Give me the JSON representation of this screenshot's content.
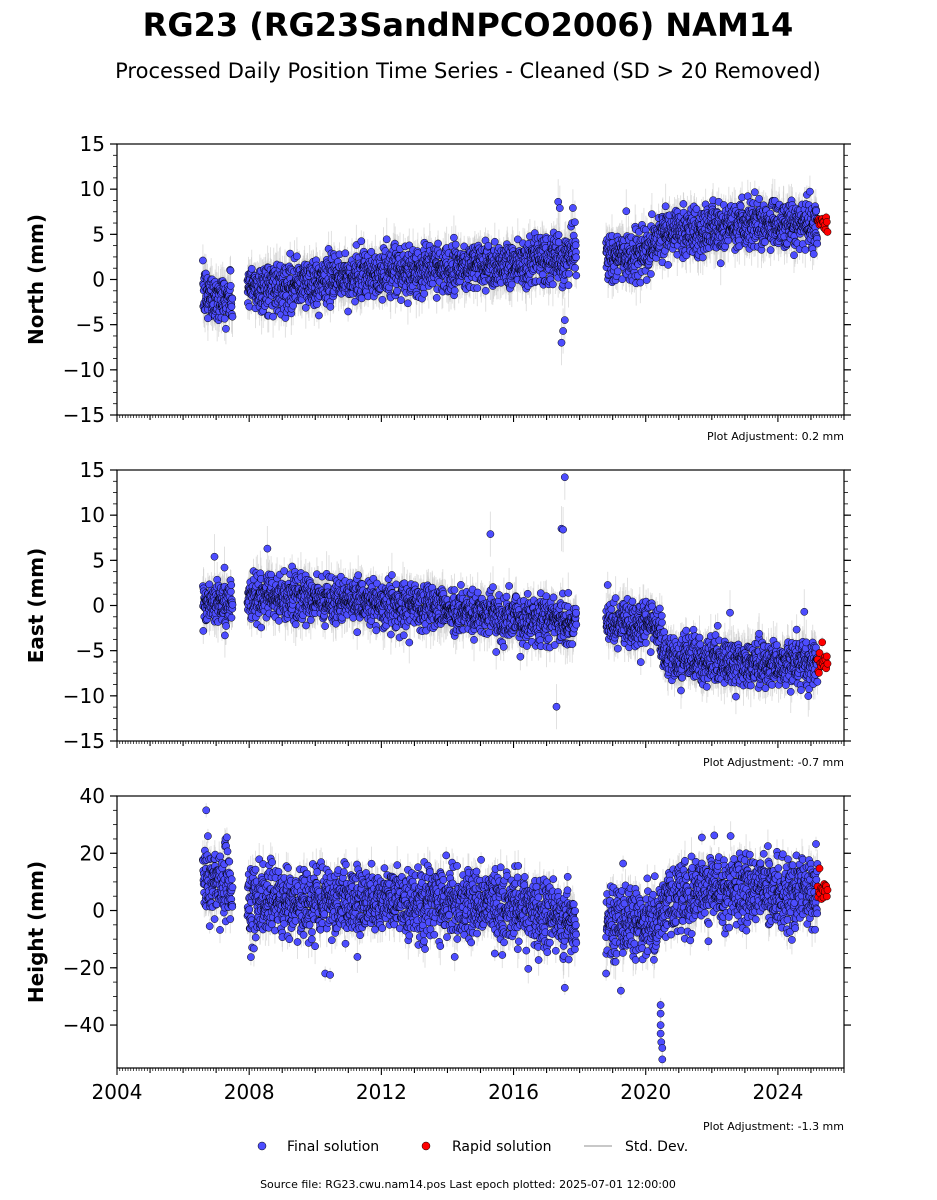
{
  "title": "RG23 (RG23SandNPCO2006) NAM14",
  "subtitle": "Processed Daily Position Time Series - Cleaned (SD > 20 Removed)",
  "footer": "Source file: RG23.cwu.nam14.pos  Last epoch plotted: 2025-07-01 12:00:00",
  "legend": {
    "final": "Final solution",
    "rapid": "Rapid solution",
    "std": "Std. Dev."
  },
  "colors": {
    "final": "#4d4dff",
    "rapid": "#ff0000",
    "std": "#c8c8c8",
    "axis": "#000000"
  },
  "chart_data": [
    {
      "type": "scatter",
      "ylabel": "North (mm)",
      "ylim": [
        -15,
        15
      ],
      "yticks": [
        -15,
        -10,
        -5,
        0,
        5,
        10,
        15
      ],
      "xlim": [
        2004,
        2026
      ],
      "xticks": [
        2004,
        2008,
        2012,
        2016,
        2020,
        2024
      ],
      "show_xtick_labels": false,
      "adjustment": "Plot Adjustment: 0.2 mm",
      "trend": [
        [
          2006.6,
          -1.5
        ],
        [
          2007.4,
          -2.2
        ],
        [
          2008.0,
          -1.0
        ],
        [
          2010.0,
          -0.3
        ],
        [
          2012.0,
          0.6
        ],
        [
          2014.0,
          1.4
        ],
        [
          2016.0,
          1.8
        ],
        [
          2017.5,
          2.3
        ],
        [
          2017.9,
          3.0
        ],
        [
          2018.8,
          2.6
        ],
        [
          2020.0,
          2.6
        ],
        [
          2020.5,
          5.0
        ],
        [
          2022.0,
          5.5
        ],
        [
          2023.0,
          6.0
        ],
        [
          2025.0,
          6.3
        ]
      ],
      "series": [
        {
          "name": "Final solution",
          "segments": [
            [
              2006.6,
              2007.5
            ],
            [
              2007.95,
              2017.9
            ],
            [
              2018.8,
              2025.2
            ]
          ],
          "noise": 1.3,
          "err": 1.8
        },
        {
          "name": "Rapid solution",
          "segments": [
            [
              2025.2,
              2025.5
            ]
          ],
          "noise": 0.6,
          "err": 0.5
        }
      ],
      "outliers": [
        [
          2017.35,
          8.6
        ],
        [
          2017.4,
          7.9
        ],
        [
          2017.45,
          -7.0
        ],
        [
          2017.5,
          -5.7
        ],
        [
          2017.55,
          -4.5
        ],
        [
          2020.6,
          8.1
        ],
        [
          2006.75,
          -4.3
        ]
      ]
    },
    {
      "type": "scatter",
      "ylabel": "East (mm)",
      "ylim": [
        -15,
        15
      ],
      "yticks": [
        -15,
        -10,
        -5,
        0,
        5,
        10,
        15
      ],
      "xlim": [
        2004,
        2026
      ],
      "xticks": [
        2004,
        2008,
        2012,
        2016,
        2020,
        2024
      ],
      "show_xtick_labels": false,
      "adjustment": "Plot Adjustment: -0.7 mm",
      "trend": [
        [
          2006.6,
          0.3
        ],
        [
          2007.4,
          0.3
        ],
        [
          2008.0,
          1.0
        ],
        [
          2010.0,
          0.8
        ],
        [
          2012.0,
          0.3
        ],
        [
          2014.0,
          -0.4
        ],
        [
          2016.0,
          -1.4
        ],
        [
          2017.9,
          -1.8
        ],
        [
          2018.8,
          -1.8
        ],
        [
          2020.4,
          -2.0
        ],
        [
          2020.6,
          -5.8
        ],
        [
          2022.0,
          -6.1
        ],
        [
          2023.0,
          -6.5
        ],
        [
          2025.0,
          -6.3
        ]
      ],
      "series": [
        {
          "name": "Final solution",
          "segments": [
            [
              2006.6,
              2007.5
            ],
            [
              2007.95,
              2017.9
            ],
            [
              2018.8,
              2025.2
            ]
          ],
          "noise": 1.2,
          "err": 1.8
        },
        {
          "name": "Rapid solution",
          "segments": [
            [
              2025.2,
              2025.5
            ]
          ],
          "noise": 0.8,
          "err": 0.5
        }
      ],
      "outliers": [
        [
          2017.55,
          14.2
        ],
        [
          2017.45,
          8.5
        ],
        [
          2017.5,
          8.4
        ],
        [
          2015.3,
          7.9
        ],
        [
          2008.55,
          6.3
        ],
        [
          2006.95,
          5.4
        ],
        [
          2017.3,
          -11.2
        ],
        [
          2024.8,
          -0.7
        ],
        [
          2022.55,
          -0.8
        ]
      ]
    },
    {
      "type": "scatter",
      "ylabel": "Height (mm)",
      "ylim": [
        -55,
        40
      ],
      "yticks": [
        -40,
        -20,
        0,
        20,
        40
      ],
      "xlim": [
        2004,
        2026
      ],
      "xticks": [
        2004,
        2008,
        2012,
        2016,
        2020,
        2024
      ],
      "xticklabels": [
        "2004",
        "2008",
        "2012",
        "2016",
        "2020",
        "2024"
      ],
      "show_xtick_labels": true,
      "adjustment": "Plot Adjustment: -1.3 mm",
      "trend": [
        [
          2006.6,
          12.0
        ],
        [
          2007.4,
          9.0
        ],
        [
          2008.0,
          3.0
        ],
        [
          2012.0,
          3.0
        ],
        [
          2016.0,
          1.5
        ],
        [
          2017.9,
          -4.0
        ],
        [
          2018.8,
          -4.0
        ],
        [
          2020.3,
          -5.0
        ],
        [
          2020.6,
          4.0
        ],
        [
          2022.0,
          8.0
        ],
        [
          2023.0,
          7.0
        ],
        [
          2025.0,
          7.0
        ]
      ],
      "series": [
        {
          "name": "Final solution",
          "segments": [
            [
              2006.6,
              2007.5
            ],
            [
              2007.95,
              2017.9
            ],
            [
              2018.8,
              2025.2
            ]
          ],
          "noise": 6.0,
          "err": 5.0
        },
        {
          "name": "Rapid solution",
          "segments": [
            [
              2025.2,
              2025.5
            ]
          ],
          "noise": 2.2,
          "err": 1.5
        }
      ],
      "outliers": [
        [
          2006.7,
          35.0
        ],
        [
          2006.75,
          26.0
        ],
        [
          2020.45,
          -33.0
        ],
        [
          2020.45,
          -36.0
        ],
        [
          2020.45,
          -40.0
        ],
        [
          2020.45,
          -43.0
        ],
        [
          2020.47,
          -46.0
        ],
        [
          2020.5,
          -48.0
        ],
        [
          2020.5,
          -52.0
        ],
        [
          2019.25,
          -28.0
        ],
        [
          2018.8,
          -22.0
        ],
        [
          2010.3,
          -22.0
        ],
        [
          2010.45,
          -22.5
        ],
        [
          2017.55,
          -27.0
        ],
        [
          2021.7,
          25.5
        ]
      ]
    }
  ]
}
